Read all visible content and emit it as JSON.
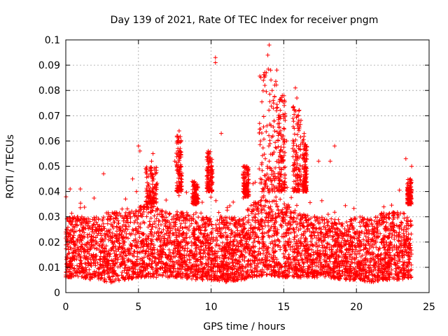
{
  "chart_data": {
    "type": "scatter",
    "title": "Day 139 of 2021, Rate Of TEC Index for receiver pngm",
    "xlabel": "GPS time / hours",
    "ylabel": "ROTI / TECUs",
    "xlim": [
      0,
      25
    ],
    "ylim": [
      0,
      0.1
    ],
    "x_ticks": [
      0,
      5,
      10,
      15,
      20,
      25
    ],
    "x_tick_labels": [
      "0",
      "5",
      "10",
      "15",
      "20",
      "25"
    ],
    "y_ticks": [
      0,
      0.01,
      0.02,
      0.03,
      0.04,
      0.05,
      0.06,
      0.07,
      0.08,
      0.09,
      0.1
    ],
    "y_tick_labels": [
      "0",
      "0.01",
      "0.02",
      "0.03",
      "0.04",
      "0.05",
      "0.06",
      "0.07",
      "0.08",
      "0.09",
      "0.1"
    ],
    "grid": true,
    "marker": "+",
    "color": "#ff0000",
    "x_data_range": [
      0,
      23.8
    ],
    "baseline_envelope": [
      [
        0.0,
        0.006,
        0.03
      ],
      [
        1.0,
        0.006,
        0.03
      ],
      [
        2.0,
        0.005,
        0.03
      ],
      [
        3.0,
        0.004,
        0.032
      ],
      [
        4.0,
        0.005,
        0.032
      ],
      [
        5.0,
        0.006,
        0.034
      ],
      [
        6.0,
        0.006,
        0.036
      ],
      [
        7.0,
        0.006,
        0.032
      ],
      [
        8.0,
        0.006,
        0.032
      ],
      [
        9.0,
        0.005,
        0.03
      ],
      [
        10.0,
        0.005,
        0.03
      ],
      [
        11.0,
        0.004,
        0.03
      ],
      [
        12.0,
        0.005,
        0.03
      ],
      [
        13.0,
        0.006,
        0.036
      ],
      [
        14.0,
        0.007,
        0.04
      ],
      [
        15.0,
        0.006,
        0.036
      ],
      [
        16.0,
        0.006,
        0.032
      ],
      [
        17.0,
        0.006,
        0.03
      ],
      [
        18.0,
        0.006,
        0.03
      ],
      [
        19.0,
        0.005,
        0.028
      ],
      [
        20.0,
        0.005,
        0.03
      ],
      [
        21.0,
        0.004,
        0.03
      ],
      [
        22.0,
        0.005,
        0.032
      ],
      [
        23.0,
        0.005,
        0.032
      ],
      [
        23.8,
        0.006,
        0.03
      ]
    ],
    "peaks": [
      [
        0.3,
        0.041
      ],
      [
        1.0,
        0.041
      ],
      [
        2.6,
        0.047
      ],
      [
        4.6,
        0.045
      ],
      [
        5.0,
        0.058
      ],
      [
        5.1,
        0.056
      ],
      [
        5.9,
        0.052
      ],
      [
        6.0,
        0.055
      ],
      [
        7.5,
        0.052
      ],
      [
        7.8,
        0.064
      ],
      [
        8.7,
        0.044
      ],
      [
        9.8,
        0.056
      ],
      [
        10.3,
        0.093
      ],
      [
        10.3,
        0.091
      ],
      [
        10.7,
        0.063
      ],
      [
        12.3,
        0.05
      ],
      [
        13.4,
        0.06
      ],
      [
        13.6,
        0.084
      ],
      [
        13.7,
        0.082
      ],
      [
        13.8,
        0.087
      ],
      [
        13.9,
        0.094
      ],
      [
        14.0,
        0.098
      ],
      [
        14.1,
        0.088
      ],
      [
        14.2,
        0.08
      ],
      [
        14.3,
        0.075
      ],
      [
        14.5,
        0.072
      ],
      [
        14.7,
        0.067
      ],
      [
        14.9,
        0.078
      ],
      [
        15.0,
        0.065
      ],
      [
        15.2,
        0.06
      ],
      [
        15.6,
        0.057
      ],
      [
        15.8,
        0.081
      ],
      [
        15.9,
        0.077
      ],
      [
        16.0,
        0.07
      ],
      [
        16.4,
        0.063
      ],
      [
        16.5,
        0.055
      ],
      [
        17.4,
        0.052
      ],
      [
        18.2,
        0.052
      ],
      [
        18.5,
        0.058
      ],
      [
        23.4,
        0.053
      ],
      [
        23.8,
        0.05
      ]
    ],
    "peak_clusters": [
      [
        5.5,
        6.3,
        0.035,
        0.05
      ],
      [
        7.6,
        8.0,
        0.04,
        0.062
      ],
      [
        8.7,
        9.1,
        0.035,
        0.044
      ],
      [
        9.7,
        10.1,
        0.04,
        0.056
      ],
      [
        12.2,
        12.6,
        0.038,
        0.05
      ],
      [
        13.3,
        14.6,
        0.04,
        0.09
      ],
      [
        14.6,
        15.1,
        0.04,
        0.078
      ],
      [
        15.6,
        16.2,
        0.04,
        0.075
      ],
      [
        16.3,
        16.6,
        0.04,
        0.062
      ],
      [
        23.5,
        23.8,
        0.035,
        0.045
      ]
    ]
  }
}
